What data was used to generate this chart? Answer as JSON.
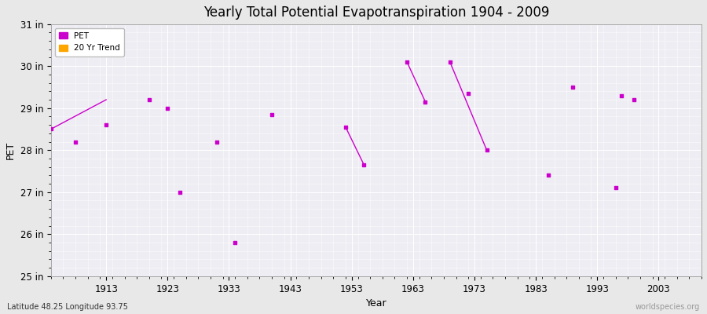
{
  "title": "Yearly Total Potential Evapotranspiration 1904 - 2009",
  "xlabel": "Year",
  "ylabel": "PET",
  "subtitle_lat_lon": "Latitude 48.25 Longitude 93.75",
  "watermark": "worldspecies.org",
  "ylim": [
    25,
    31
  ],
  "ytick_labels": [
    "25 in",
    "26 in",
    "27 in",
    "28 in",
    "29 in",
    "30 in",
    "31 in"
  ],
  "ytick_values": [
    25,
    26,
    27,
    28,
    29,
    30,
    31
  ],
  "xtick_values": [
    1913,
    1923,
    1933,
    1943,
    1953,
    1963,
    1973,
    1983,
    1993,
    2003
  ],
  "xlim": [
    1904,
    2010
  ],
  "pet_color": "#cc00cc",
  "trend_color": "#ffa500",
  "bg_color": "#e8e8e8",
  "plot_bg_color": "#eeedf3",
  "grid_color": "#ffffff",
  "pet_data": [
    [
      1904,
      28.5
    ],
    [
      1908,
      28.2
    ],
    [
      1913,
      28.6
    ],
    [
      1920,
      29.2
    ],
    [
      1923,
      29.0
    ],
    [
      1925,
      27.0
    ],
    [
      1931,
      28.2
    ],
    [
      1934,
      25.8
    ],
    [
      1940,
      28.85
    ],
    [
      1952,
      28.55
    ],
    [
      1955,
      27.65
    ],
    [
      1962,
      30.1
    ],
    [
      1965,
      29.15
    ],
    [
      1969,
      30.1
    ],
    [
      1972,
      29.35
    ],
    [
      1975,
      28.0
    ],
    [
      1985,
      27.4
    ],
    [
      1989,
      29.5
    ],
    [
      1996,
      27.1
    ],
    [
      1997,
      29.3
    ],
    [
      1999,
      29.2
    ]
  ],
  "trend_segments": [
    [
      [
        1904,
        28.5
      ],
      [
        1913,
        29.2
      ]
    ],
    [
      [
        1952,
        28.55
      ],
      [
        1955,
        27.65
      ]
    ],
    [
      [
        1962,
        30.1
      ],
      [
        1965,
        29.15
      ]
    ],
    [
      [
        1969,
        30.1
      ],
      [
        1975,
        28.0
      ]
    ]
  ],
  "legend_pet_label": "PET",
  "legend_trend_label": "20 Yr Trend"
}
